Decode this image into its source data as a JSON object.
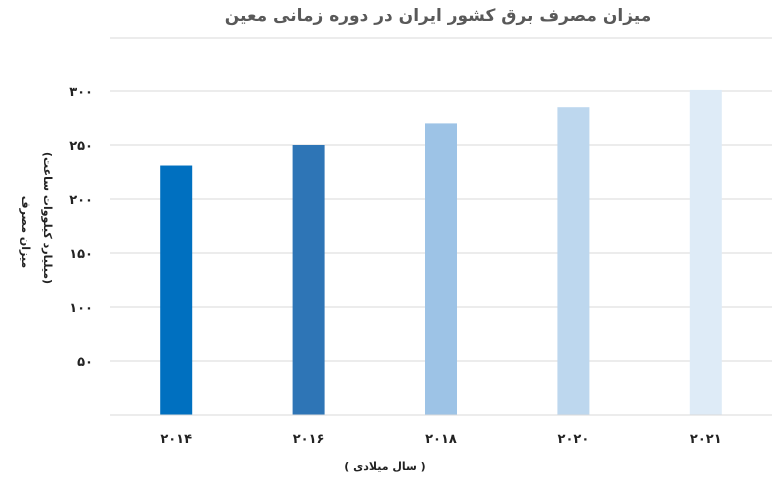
{
  "chart_data": {
    "type": "bar",
    "title": "میزان مصرف برق کشور ایران در دوره زمانی معین",
    "xlabel": "( سال میلادی )",
    "ylabel_line1": "میزان مصرف",
    "ylabel_line2": "(میلیارد کیلووات ساعت)",
    "categories": [
      "۲۰۱۴",
      "۲۰۱۶",
      "۲۰۱۸",
      "۲۰۲۰",
      "۲۰۲۱"
    ],
    "values": [
      231,
      250,
      270,
      285,
      301
    ],
    "yticks": [
      {
        "value": 50,
        "label": "۵۰"
      },
      {
        "value": 100,
        "label": "۱۰۰"
      },
      {
        "value": 150,
        "label": "۱۵۰"
      },
      {
        "value": 200,
        "label": "۲۰۰"
      },
      {
        "value": 250,
        "label": "۲۵۰"
      },
      {
        "value": 300,
        "label": "۳۰۰"
      }
    ],
    "ylim": [
      0,
      300
    ],
    "grid": true,
    "colors": [
      "#0070C0",
      "#2E75B6",
      "#9DC3E6",
      "#BDD7EE",
      "#DEEBF7"
    ]
  }
}
